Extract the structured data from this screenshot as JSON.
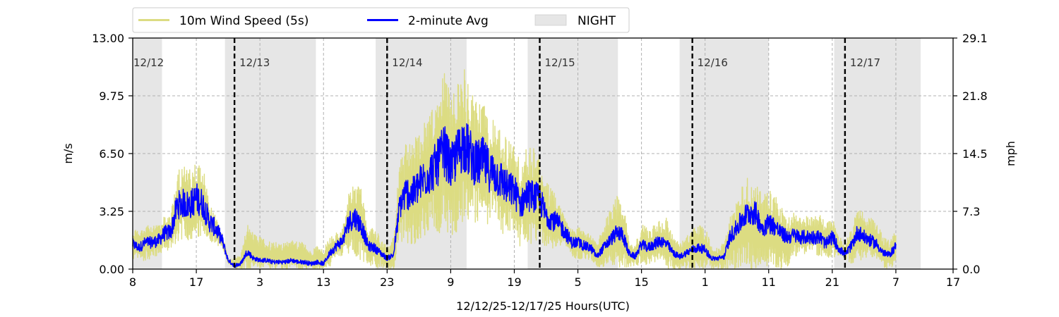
{
  "chart_data": {
    "type": "line",
    "xlabel": "12/12/25-12/17/25  Hours(UTC)",
    "ylabel_left": "m/s",
    "ylabel_right": "mph",
    "x_unit": "hours since 12/12/25 00:00 UTC",
    "xlim": [
      8,
      137
    ],
    "ylim": [
      0,
      13
    ],
    "ylim_right": [
      0,
      29.1
    ],
    "x_ticks": [
      8,
      18,
      28,
      38,
      48,
      58,
      68,
      78,
      88,
      98,
      108,
      118,
      128,
      137
    ],
    "x_tick_labels": [
      "8",
      "17",
      "3",
      "13",
      "23",
      "9",
      "19",
      "5",
      "15",
      "1",
      "11",
      "21",
      "7",
      "17"
    ],
    "y_ticks": [
      "0.00",
      "3.25",
      "6.50",
      "9.75",
      "13.00"
    ],
    "y_tick_values": [
      0,
      3.25,
      6.5,
      9.75,
      13
    ],
    "y_right_ticks": [
      "0.0",
      "7.3",
      "14.5",
      "21.8",
      "29.1"
    ],
    "grid": true,
    "legend_position": "top-left, above plot",
    "legend": [
      {
        "name": "10m Wind Speed (5s)",
        "color": "#dcdc82",
        "kind": "line"
      },
      {
        "name": "2-minute Avg",
        "color": "#0000ff",
        "kind": "line"
      },
      {
        "name": "NIGHT",
        "color": "#e6e6e6",
        "kind": "patch"
      }
    ],
    "night_periods": [
      [
        8,
        12.6
      ],
      [
        22.5,
        36.8
      ],
      [
        46.2,
        60.5
      ],
      [
        70.1,
        84.3
      ],
      [
        94,
        108
      ],
      [
        118.3,
        131.9
      ]
    ],
    "day_boundaries": [
      24,
      48,
      72,
      96,
      120
    ],
    "day_labels": [
      {
        "label": "12/12",
        "x": 8
      },
      {
        "label": "12/13",
        "x": 24
      },
      {
        "label": "12/14",
        "x": 48
      },
      {
        "label": "12/15",
        "x": 72
      },
      {
        "label": "12/16",
        "x": 96
      },
      {
        "label": "12/17",
        "x": 120
      }
    ],
    "series": [
      {
        "name": "10m Wind Speed (5s)",
        "color": "#dcdc82",
        "profile_x": [
          8,
          9,
          10,
          11,
          12,
          13,
          14,
          15,
          16,
          17,
          18,
          19,
          20,
          21,
          22,
          23,
          24,
          25,
          26,
          27,
          28,
          29,
          30,
          31,
          32,
          33,
          34,
          35,
          36,
          37,
          38,
          39,
          40,
          41,
          42,
          43,
          44,
          45,
          46,
          47,
          48,
          49,
          50,
          51,
          52,
          53,
          54,
          55,
          56,
          57,
          58,
          59,
          60,
          61,
          62,
          63,
          64,
          65,
          66,
          67,
          68,
          69,
          70,
          71,
          72,
          73,
          74,
          75,
          76,
          77,
          78,
          79,
          80,
          81,
          82,
          83,
          84,
          85,
          86,
          87,
          88,
          89,
          90,
          91,
          92,
          93,
          94,
          95,
          96,
          97,
          98,
          99,
          100,
          101,
          102,
          103,
          104,
          105,
          106,
          107,
          108,
          109,
          110,
          111,
          112,
          113,
          114,
          115,
          116,
          117,
          118,
          119,
          120,
          121,
          122,
          123,
          124,
          125,
          126,
          127,
          128
        ],
        "profile_low": [
          0.5,
          0.4,
          0.5,
          0.6,
          0.7,
          1.0,
          1.1,
          1.5,
          1.7,
          1.6,
          1.7,
          1.5,
          1.5,
          1.4,
          1.2,
          0.3,
          0.0,
          0.0,
          0.0,
          0.0,
          0.0,
          0.0,
          0.0,
          0.0,
          0.0,
          0.0,
          0.0,
          0.0,
          0.0,
          0.0,
          0.0,
          0.1,
          0.5,
          0.8,
          0.9,
          0.6,
          0.3,
          0.2,
          0.1,
          0.0,
          0.0,
          0.0,
          1.1,
          1.5,
          1.2,
          1.7,
          1.9,
          2.0,
          2.0,
          2.2,
          1.6,
          2.1,
          2.5,
          2.6,
          2.3,
          2.7,
          2.3,
          2.3,
          2.0,
          1.7,
          1.8,
          1.2,
          1.5,
          1.3,
          1.2,
          1.1,
          1.1,
          1.3,
          1.2,
          0.6,
          0.6,
          0.5,
          0.5,
          0.1,
          0.0,
          0.0,
          0.0,
          0.0,
          0.0,
          0.2,
          0.2,
          0.2,
          0.3,
          0.4,
          0.0,
          0.0,
          0.0,
          0.0,
          0.0,
          0.0,
          0.0,
          0.0,
          0.0,
          0.0,
          0.0,
          0.0,
          0.0,
          0.0,
          0.0,
          0.0,
          0.0,
          0.0,
          0.0,
          0.1,
          0.7,
          0.8,
          0.8,
          0.9,
          0.7,
          0.7,
          0.6,
          0.7,
          0.6,
          0.3,
          0.4,
          0.6,
          0.7,
          0.6,
          0.1,
          0.0,
          0.3
        ],
        "profile_high": [
          2.3,
          2.2,
          2.5,
          2.5,
          2.5,
          3.0,
          3.1,
          5.7,
          5.8,
          5.6,
          6.2,
          5.9,
          3.8,
          3.1,
          2.1,
          0.6,
          0.6,
          0.8,
          2.5,
          2.1,
          1.8,
          1.6,
          1.5,
          1.5,
          1.5,
          1.7,
          1.6,
          1.5,
          1.0,
          1.3,
          1.2,
          1.8,
          2.1,
          2.3,
          4.5,
          5.1,
          4.5,
          2.4,
          2.3,
          1.8,
          1.3,
          1.8,
          6.2,
          7.1,
          7.3,
          7.8,
          8.6,
          9.1,
          10.0,
          11.2,
          9.7,
          10.7,
          11.6,
          10.4,
          9.4,
          9.5,
          8.9,
          8.2,
          7.9,
          7.3,
          7.0,
          6.0,
          6.9,
          6.8,
          6.5,
          4.9,
          4.5,
          3.8,
          2.9,
          2.4,
          2.4,
          2.1,
          2.0,
          1.4,
          2.5,
          3.3,
          4.1,
          4.1,
          1.8,
          1.3,
          2.6,
          2.3,
          2.5,
          2.8,
          2.9,
          1.8,
          1.5,
          1.8,
          2.3,
          2.5,
          2.4,
          1.3,
          1.2,
          1.5,
          3.0,
          3.9,
          4.8,
          5.3,
          5.2,
          4.0,
          4.5,
          4.2,
          3.5,
          3.1,
          3.2,
          2.9,
          3.0,
          2.9,
          3.1,
          2.6,
          2.9,
          1.9,
          1.4,
          2.3,
          3.7,
          3.2,
          2.9,
          2.7,
          1.8,
          1.6,
          2.3
        ]
      },
      {
        "name": "2-minute Avg",
        "color": "#0000ff",
        "profile_x": [
          8,
          9,
          10,
          11,
          12,
          13,
          14,
          15,
          16,
          17,
          18,
          19,
          20,
          21,
          22,
          23,
          24,
          25,
          26,
          27,
          28,
          29,
          30,
          31,
          32,
          33,
          34,
          35,
          36,
          37,
          38,
          39,
          40,
          41,
          42,
          43,
          44,
          45,
          46,
          47,
          48,
          49,
          50,
          51,
          52,
          53,
          54,
          55,
          56,
          57,
          58,
          59,
          60,
          61,
          62,
          63,
          64,
          65,
          66,
          67,
          68,
          69,
          70,
          71,
          72,
          73,
          74,
          75,
          76,
          77,
          78,
          79,
          80,
          81,
          82,
          83,
          84,
          85,
          86,
          87,
          88,
          89,
          90,
          91,
          92,
          93,
          94,
          95,
          96,
          97,
          98,
          99,
          100,
          101,
          102,
          103,
          104,
          105,
          106,
          107,
          108,
          109,
          110,
          111,
          112,
          113,
          114,
          115,
          116,
          117,
          118,
          119,
          120,
          121,
          122,
          123,
          124,
          125,
          126,
          127,
          128
        ],
        "profile": [
          1.4,
          1.2,
          1.5,
          1.5,
          1.6,
          2.0,
          2.1,
          3.6,
          3.7,
          3.6,
          4.0,
          3.7,
          2.7,
          2.3,
          1.7,
          0.5,
          0.2,
          0.3,
          1.0,
          0.6,
          0.5,
          0.5,
          0.4,
          0.4,
          0.4,
          0.5,
          0.4,
          0.4,
          0.3,
          0.4,
          0.3,
          0.9,
          1.3,
          1.6,
          2.7,
          2.9,
          2.4,
          1.3,
          1.2,
          0.9,
          0.6,
          0.8,
          3.6,
          4.3,
          4.2,
          4.7,
          5.2,
          5.5,
          6.0,
          6.7,
          5.7,
          6.4,
          7.1,
          6.5,
          5.9,
          6.1,
          5.6,
          5.3,
          5.0,
          4.5,
          4.4,
          3.6,
          4.2,
          4.1,
          3.9,
          3.0,
          2.8,
          2.5,
          2.1,
          1.5,
          1.5,
          1.3,
          1.2,
          0.7,
          1.2,
          1.6,
          2.0,
          2.0,
          0.9,
          0.7,
          1.4,
          1.2,
          1.4,
          1.6,
          1.4,
          0.9,
          0.7,
          0.9,
          1.1,
          1.2,
          1.1,
          0.6,
          0.6,
          0.7,
          1.9,
          2.3,
          2.9,
          3.2,
          3.1,
          2.3,
          2.6,
          2.4,
          2.0,
          1.8,
          1.9,
          1.8,
          1.8,
          1.8,
          1.8,
          1.4,
          1.8,
          1.2,
          0.8,
          1.3,
          2.1,
          1.8,
          1.6,
          1.4,
          0.9,
          0.8,
          1.3
        ]
      }
    ]
  }
}
